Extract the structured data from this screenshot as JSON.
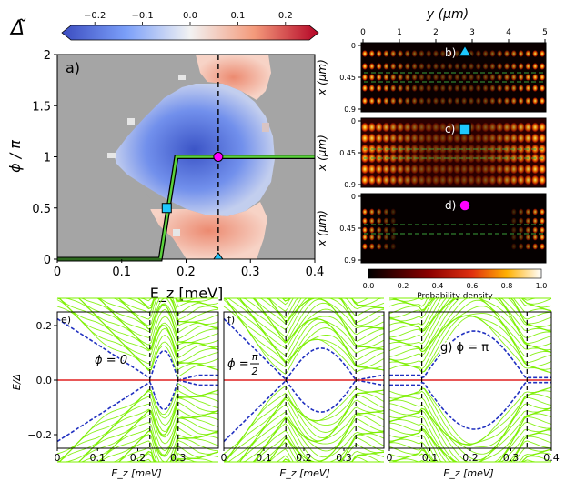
{
  "colorbar": {
    "symbol": "Δ̃",
    "ticks": [
      "−0.2",
      "−0.1",
      "0.0",
      "0.1",
      "0.2"
    ],
    "tick_values": [
      -0.2,
      -0.1,
      0.0,
      0.1,
      0.2
    ],
    "range": [
      -0.25,
      0.25
    ],
    "colors": {
      "low": "#3b4cc0",
      "mid": "#f2f2f2",
      "high": "#b40426"
    }
  },
  "panel_a": {
    "label": "a)",
    "xlabel": "E_z [meV]",
    "ylabel": "ϕ / π",
    "xticks": [
      "0",
      "0.1",
      "0.2",
      "0.3",
      "0.4"
    ],
    "xtick_values": [
      0,
      0.1,
      0.2,
      0.3,
      0.4
    ],
    "yticks": [
      "0",
      "0.5",
      "1",
      "1.5",
      "2"
    ],
    "ytick_values": [
      0,
      0.5,
      1,
      1.5,
      2
    ],
    "xlim": [
      0,
      0.4
    ],
    "ylim": [
      0,
      2
    ],
    "dashed_line_ez": 0.25,
    "markers": [
      {
        "shape": "circle",
        "ez": 0.25,
        "phi": 1.0,
        "color": "#ff00ff"
      },
      {
        "shape": "square",
        "ez": 0.17,
        "phi": 0.5,
        "color": "#1ec8ff"
      },
      {
        "shape": "triangle",
        "ez": 0.25,
        "phi": 0.0,
        "color": "#1ec8ff"
      }
    ],
    "phase_path": [
      [
        0,
        0
      ],
      [
        0.16,
        0
      ],
      [
        0.185,
        1.0
      ],
      [
        0.4,
        1.0
      ]
    ]
  },
  "density_panels": {
    "top_axis_label": "y (μm)",
    "yticks_top": [
      "0",
      "1",
      "2",
      "3",
      "4",
      "5"
    ],
    "xlabel_side": "x (μm)",
    "side_ticks": [
      "0",
      "0.45",
      "0.9"
    ],
    "labels": [
      "b)",
      "c)",
      "d)"
    ],
    "colorbar_label": "Probability density",
    "colorbar_ticks": [
      "0.0",
      "0.2",
      "0.4",
      "0.6",
      "0.8",
      "1.0"
    ]
  },
  "bottom_panels": {
    "ylabel": "E/Δ",
    "yticks": [
      "0.2",
      "0.0",
      "−0.2"
    ],
    "ytick_values": [
      0.2,
      0.0,
      -0.2
    ],
    "ylim": [
      -0.25,
      0.25
    ],
    "xlabel": "E_z [meV]",
    "xlim": [
      0,
      0.4
    ],
    "e": {
      "label": "e)",
      "annotation": "ϕ = 0",
      "xticks": [
        "0",
        "0.1",
        "0.2",
        "0.3"
      ],
      "dashed": [
        0.23,
        0.3
      ]
    },
    "f": {
      "label": "f)",
      "annotation_lead": "ϕ = ",
      "annotation_num": "π",
      "annotation_den": "2",
      "xticks": [
        "0",
        "0.1",
        "0.2",
        "0.3"
      ],
      "dashed": [
        0.155,
        0.33
      ]
    },
    "g": {
      "label": "g) ϕ = π",
      "xticks": [
        "0",
        "0.1",
        "0.2",
        "0.3",
        "0.4"
      ],
      "dashed": [
        0.08,
        0.34
      ]
    }
  }
}
